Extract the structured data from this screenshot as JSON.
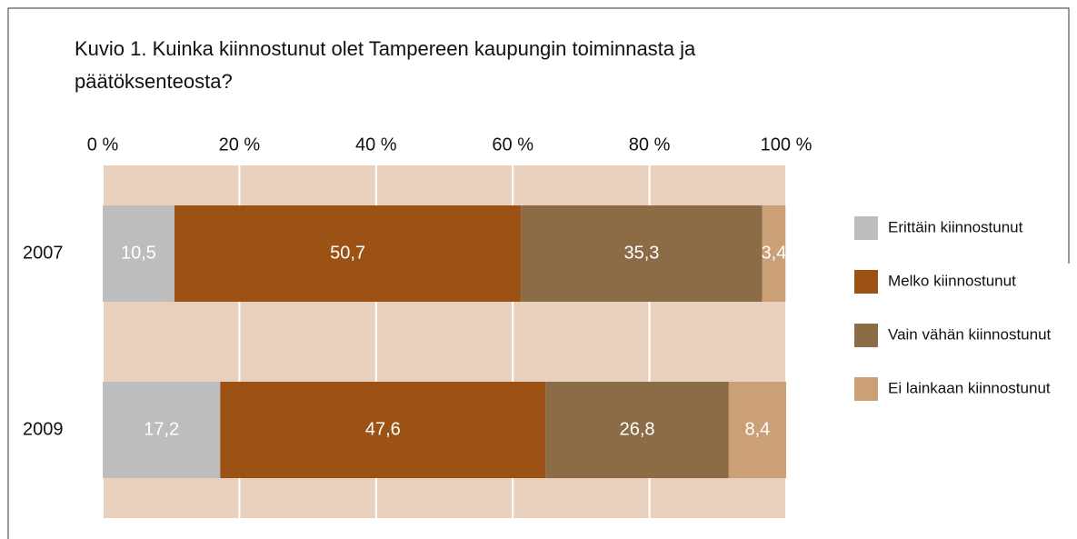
{
  "chart_data": {
    "type": "stacked-bar-horizontal",
    "title": "Kuvio 1. Kuinka kiinnostunut olet Tampereen kaupungin toiminnasta ja päätöksenteosta?",
    "categories": [
      "2007",
      "2009"
    ],
    "series": [
      {
        "name": "Erittäin kiinnostunut",
        "color": "#bdbdbd",
        "values": [
          10.5,
          17.2
        ],
        "value_labels": [
          "10,5",
          "17,2"
        ]
      },
      {
        "name": "Melko kiinnostunut",
        "color": "#9c5215",
        "values": [
          50.7,
          47.6
        ],
        "value_labels": [
          "50,7",
          "47,6"
        ]
      },
      {
        "name": "Vain vähän kiinnostunut",
        "color": "#8c6b47",
        "values": [
          35.3,
          26.8
        ],
        "value_labels": [
          "35,3",
          "26,8"
        ]
      },
      {
        "name": "Ei lainkaan kiinnostunut",
        "color": "#cca077",
        "values": [
          3.4,
          8.4
        ],
        "value_labels": [
          "3,4",
          "8,4"
        ]
      }
    ],
    "xlim": [
      0,
      100
    ],
    "xticks": [
      {
        "value": 0,
        "label": "0 %"
      },
      {
        "value": 20,
        "label": "20 %"
      },
      {
        "value": 40,
        "label": "40 %"
      },
      {
        "value": 60,
        "label": "60 %"
      },
      {
        "value": 80,
        "label": "80 %"
      },
      {
        "value": 100,
        "label": "100 %"
      }
    ],
    "grid": true,
    "legend": "right",
    "background": "#e8d0bd"
  }
}
